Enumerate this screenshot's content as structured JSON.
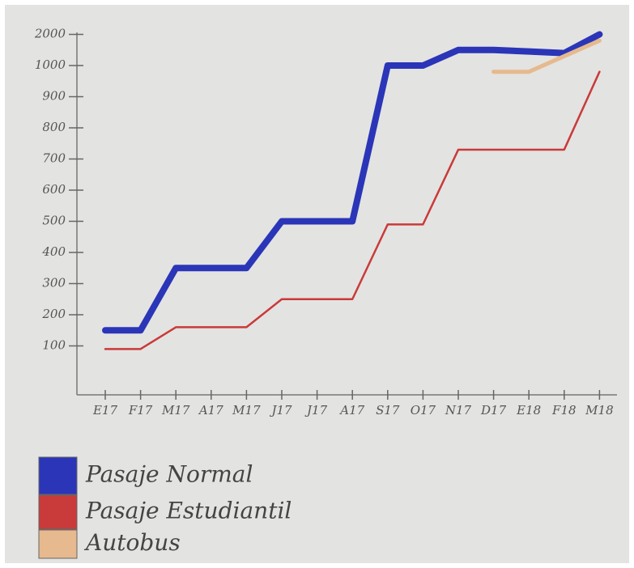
{
  "chart_data": {
    "type": "line",
    "categories": [
      "E17",
      "F17",
      "M17",
      "A17",
      "M17",
      "J17",
      "J17",
      "A17",
      "S17",
      "O17",
      "N17",
      "D17",
      "E18",
      "F18",
      "M18"
    ],
    "series": [
      {
        "name": "Pasaje Normal",
        "color": "#2a35b8",
        "values": [
          150,
          150,
          350,
          350,
          350,
          500,
          500,
          500,
          1000,
          1000,
          1500,
          1500,
          1450,
          1400,
          2000
        ]
      },
      {
        "name": "Pasaje Estudiantil",
        "color": "#c93a3a",
        "values": [
          90,
          90,
          160,
          160,
          160,
          250,
          250,
          250,
          490,
          490,
          730,
          730,
          730,
          730,
          980
        ]
      },
      {
        "name": "Autobus",
        "color": "#e6b98e",
        "values": [
          null,
          null,
          null,
          null,
          null,
          null,
          null,
          null,
          null,
          null,
          null,
          980,
          980,
          1300,
          1800
        ]
      }
    ],
    "ylim": [
      0,
      2000
    ],
    "yticks": [
      100,
      200,
      300,
      400,
      500,
      600,
      700,
      800,
      900,
      1000,
      2000
    ]
  }
}
